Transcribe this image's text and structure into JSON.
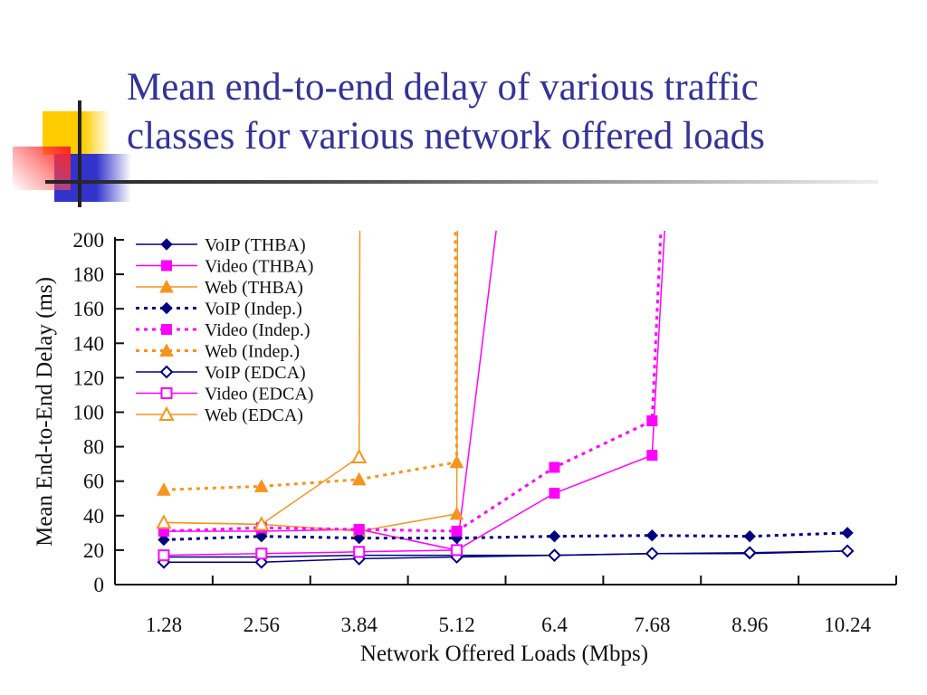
{
  "slide": {
    "title_line1": "Mean end-to-end delay of various traffic",
    "title_line2": "classes for various network offered loads"
  },
  "chart_data": {
    "type": "line",
    "title": "Mean end-to-end delay of various traffic classes for various network offered loads",
    "xlabel": "Network Offered Loads (Mbps)",
    "ylabel": "Mean End-to-End Delay  (ms)",
    "xlim": [
      0.64,
      10.88
    ],
    "ylim": [
      0,
      200
    ],
    "x_ticks": [
      1.28,
      2.56,
      3.84,
      5.12,
      6.4,
      7.68,
      8.96,
      10.24
    ],
    "x_tick_labels": [
      "1.28",
      "2.56",
      "3.84",
      "5.12",
      "6.4",
      "7.68",
      "8.96",
      "10.24"
    ],
    "y_ticks": [
      0,
      20,
      40,
      60,
      80,
      100,
      120,
      140,
      160,
      180,
      200
    ],
    "y_tick_labels": [
      "0",
      "20",
      "40",
      "60",
      "80",
      "100",
      "120",
      "140",
      "160",
      "180",
      "200"
    ],
    "legend_position": "top-left",
    "grid": false,
    "series": [
      {
        "name": "VoIP (THBA)",
        "color": "#000080",
        "dash": false,
        "marker": "diamond",
        "filled": true,
        "x": [
          1.28,
          2.56,
          3.84,
          5.12,
          6.4,
          7.68,
          8.96,
          10.24
        ],
        "y": [
          16,
          16,
          17,
          17,
          17,
          18,
          18,
          19.5
        ]
      },
      {
        "name": "Video (THBA)",
        "color": "#ff00ff",
        "dash": false,
        "marker": "square",
        "filled": true,
        "x": [
          1.28,
          2.56,
          3.84,
          5.12,
          6.4,
          7.68,
          7.85
        ],
        "y": [
          31,
          31,
          32,
          20,
          53,
          75,
          210
        ]
      },
      {
        "name": "Web (THBA)",
        "color": "#f7941d",
        "dash": false,
        "marker": "triangle",
        "filled": true,
        "x": [
          1.28,
          2.56,
          3.84,
          5.12,
          5.13
        ],
        "y": [
          36,
          35,
          31,
          41,
          210
        ]
      },
      {
        "name": "VoIP (Indep.)",
        "color": "#000080",
        "dash": true,
        "marker": "diamond",
        "filled": true,
        "x": [
          1.28,
          2.56,
          3.84,
          5.12,
          6.4,
          7.68,
          8.96,
          10.24
        ],
        "y": [
          26,
          28,
          27,
          27,
          28,
          28.5,
          28,
          30
        ]
      },
      {
        "name": "Video (Indep.)",
        "color": "#ff00ff",
        "dash": true,
        "marker": "square",
        "filled": true,
        "x": [
          1.28,
          2.56,
          3.84,
          5.12,
          6.4,
          7.68,
          7.8
        ],
        "y": [
          31,
          33,
          32,
          31,
          68,
          95,
          210
        ]
      },
      {
        "name": "Web (Indep.)",
        "color": "#f7941d",
        "dash": true,
        "marker": "triangle",
        "filled": true,
        "x": [
          1.28,
          2.56,
          3.84,
          5.12,
          5.1
        ],
        "y": [
          55,
          57,
          61,
          71,
          210
        ]
      },
      {
        "name": "VoIP (EDCA)",
        "color": "#000080",
        "dash": false,
        "marker": "diamond",
        "filled": false,
        "x": [
          1.28,
          2.56,
          3.84,
          5.12,
          6.4,
          7.68,
          8.96,
          10.24
        ],
        "y": [
          13,
          13,
          15,
          16,
          17,
          18,
          18.5,
          19.5
        ]
      },
      {
        "name": "Video (EDCA)",
        "color": "#ff00ff",
        "dash": false,
        "marker": "square",
        "filled": false,
        "x": [
          1.28,
          2.56,
          3.84,
          5.12,
          5.65
        ],
        "y": [
          17,
          18,
          19,
          20,
          210
        ]
      },
      {
        "name": "Web (EDCA)",
        "color": "#f7941d",
        "dash": false,
        "marker": "triangle",
        "filled": false,
        "x": [
          1.28,
          2.56,
          3.84,
          3.85
        ],
        "y": [
          36,
          35,
          74,
          210
        ]
      }
    ]
  }
}
